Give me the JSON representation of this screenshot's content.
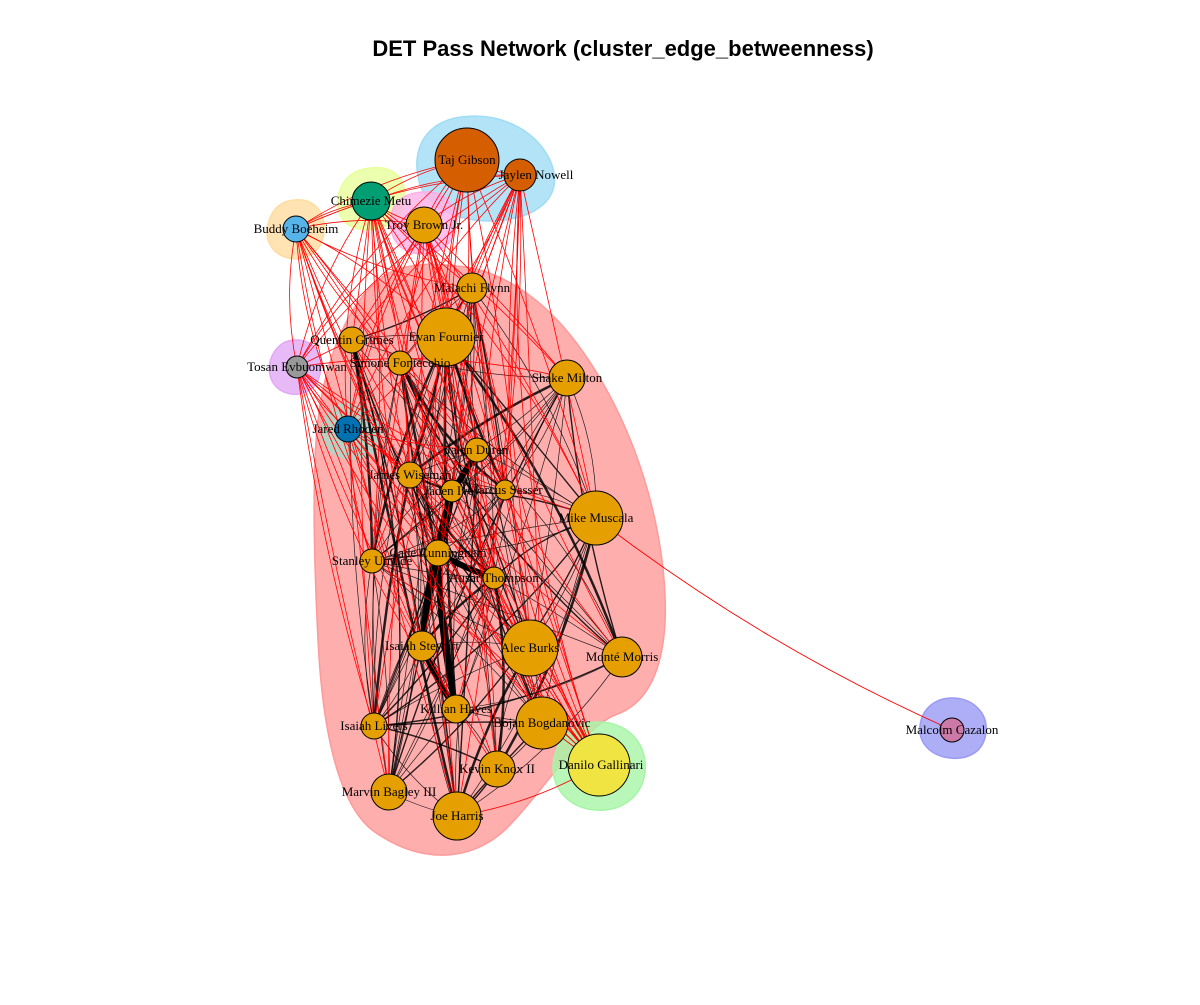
{
  "title": "DET Pass Network (cluster_edge_betweenness)",
  "cluster_colors": {
    "main": "#ff9a9a",
    "cyan": "#9fdcf5",
    "yellowgreen": "#e6ff9a",
    "pink": "#ffb0e6",
    "orange": "#ffdca0",
    "purple": "#e2a8f5",
    "teal": "#a8d8c8",
    "green": "#a6f5a6",
    "blue": "#9a9af5"
  },
  "edge_colors": {
    "intra": "#000000",
    "inter": "#ff0000"
  },
  "nodes": [
    {
      "id": "taj",
      "label": "Taj Gibson",
      "color": "#d55e00",
      "cluster": "cyan"
    },
    {
      "id": "jaylen",
      "label": "Jaylen Nowell",
      "color": "#d55e00",
      "cluster": "cyan"
    },
    {
      "id": "chimezie",
      "label": "Chimezie Metu",
      "color": "#009e73",
      "cluster": "yellowgreen"
    },
    {
      "id": "troy",
      "label": "Troy Brown Jr.",
      "color": "#e69f00",
      "cluster": "pink"
    },
    {
      "id": "buddy",
      "label": "Buddy Boeheim",
      "color": "#56b4e9",
      "cluster": "orange"
    },
    {
      "id": "malachi",
      "label": "Malachi Flynn",
      "color": "#e69f00",
      "cluster": "main"
    },
    {
      "id": "quentin",
      "label": "Quentin Grimes",
      "color": "#e69f00",
      "cluster": "main"
    },
    {
      "id": "evan",
      "label": "Evan Fournier",
      "color": "#e69f00",
      "cluster": "main"
    },
    {
      "id": "simone",
      "label": "Simone Fontecchio",
      "color": "#e69f00",
      "cluster": "main"
    },
    {
      "id": "tosan",
      "label": "Tosan Evbuomwan",
      "color": "#999999",
      "cluster": "purple"
    },
    {
      "id": "shake",
      "label": "Shake Milton",
      "color": "#e69f00",
      "cluster": "main"
    },
    {
      "id": "jared",
      "label": "Jared Rhoden",
      "color": "#0072b2",
      "cluster": "teal"
    },
    {
      "id": "jalen",
      "label": "Jalen Duren",
      "color": "#e69f00",
      "cluster": "main"
    },
    {
      "id": "james",
      "label": "James Wiseman",
      "color": "#e69f00",
      "cluster": "main"
    },
    {
      "id": "aiden",
      "label": "Jaden Ivey",
      "color": "#e69f00",
      "cluster": "main"
    },
    {
      "id": "marcus",
      "label": "Marcus Sasser",
      "color": "#e69f00",
      "cluster": "main"
    },
    {
      "id": "mike",
      "label": "Mike Muscala",
      "color": "#e69f00",
      "cluster": "main"
    },
    {
      "id": "stanley",
      "label": "Stanley Umude",
      "color": "#e69f00",
      "cluster": "main"
    },
    {
      "id": "cade",
      "label": "Cade Cunningham",
      "color": "#e69f00",
      "cluster": "main"
    },
    {
      "id": "thompson",
      "label": "Ausar Thompson",
      "color": "#e69f00",
      "cluster": "main"
    },
    {
      "id": "isaiahs",
      "label": "Isaiah Stewart",
      "color": "#e69f00",
      "cluster": "main"
    },
    {
      "id": "alec",
      "label": "Alec Burks",
      "color": "#e69f00",
      "cluster": "main"
    },
    {
      "id": "monte",
      "label": "Monté Morris",
      "color": "#e69f00",
      "cluster": "main"
    },
    {
      "id": "killian",
      "label": "Killian Hayes",
      "color": "#e69f00",
      "cluster": "main"
    },
    {
      "id": "isaiahl",
      "label": "Isaiah Livers",
      "color": "#e69f00",
      "cluster": "main"
    },
    {
      "id": "bojan",
      "label": "Bojan Bogdanovic",
      "color": "#e69f00",
      "cluster": "main"
    },
    {
      "id": "kevin",
      "label": "Kevin Knox II",
      "color": "#e69f00",
      "cluster": "main"
    },
    {
      "id": "danilo",
      "label": "Danilo Gallinari",
      "color": "#f0e442",
      "cluster": "green"
    },
    {
      "id": "marvin",
      "label": "Marvin Bagley III",
      "color": "#e69f00",
      "cluster": "main"
    },
    {
      "id": "joe",
      "label": "Joe Harris",
      "color": "#e69f00",
      "cluster": "main"
    },
    {
      "id": "malcolm",
      "label": "Malcolm Cazalon",
      "color": "#cc79a7",
      "cluster": "blue"
    }
  ]
}
